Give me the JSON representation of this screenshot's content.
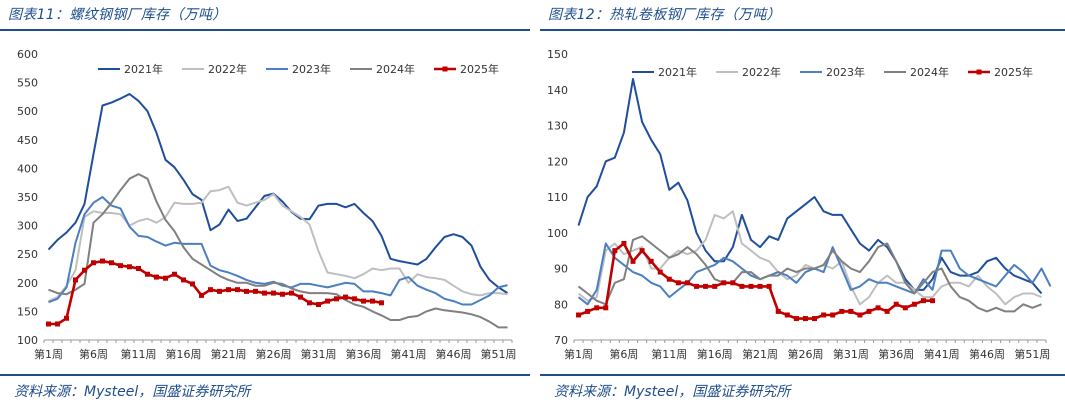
{
  "panels": [
    {
      "title": "图表11：螺纹钢钢厂库存（万吨）",
      "source": "资料来源：Mysteel，国盛证券研究所"
    },
    {
      "title": "图表12：热轧卷板钢厂库存（万吨）",
      "source": "资料来源：Mysteel，国盛证券研究所"
    }
  ],
  "chart_data": [
    {
      "type": "line",
      "title": "图表11：螺纹钢钢厂库存（万吨）",
      "xlabel": "",
      "ylabel": "",
      "ylim": [
        100,
        600
      ],
      "yticks": [
        100,
        150,
        200,
        250,
        300,
        350,
        400,
        450,
        500,
        550,
        600
      ],
      "x_tick_labels": [
        "第1周",
        "第6周",
        "第11周",
        "第16周",
        "第21周",
        "第26周",
        "第31周",
        "第36周",
        "第41周",
        "第46周",
        "第51周"
      ],
      "grid": false,
      "legend_position": "top",
      "series": [
        {
          "name": "2021年",
          "color": "#1f4e9c",
          "values": [
            258,
            275,
            288,
            305,
            338,
            425,
            510,
            515,
            522,
            530,
            518,
            500,
            462,
            415,
            402,
            380,
            355,
            345,
            292,
            302,
            328,
            308,
            312,
            332,
            352,
            356,
            342,
            324,
            312,
            311,
            335,
            338,
            338,
            332,
            338,
            322,
            308,
            282,
            242,
            238,
            235,
            232,
            242,
            262,
            280,
            285,
            280,
            265,
            228,
            205,
            192,
            182
          ]
        },
        {
          "name": "2022年",
          "color": "#bfbfbf",
          "values": [
            168,
            175,
            195,
            222,
            315,
            325,
            322,
            322,
            320,
            300,
            308,
            312,
            305,
            315,
            340,
            338,
            338,
            340,
            360,
            362,
            368,
            340,
            335,
            340,
            345,
            355,
            335,
            325,
            315,
            302,
            255,
            218,
            215,
            212,
            208,
            215,
            225,
            222,
            225,
            225,
            200,
            215,
            210,
            208,
            205,
            195,
            185,
            180,
            178,
            182,
            182,
            180
          ]
        },
        {
          "name": "2023年",
          "color": "#4a7fc1",
          "values": [
            166,
            172,
            192,
            270,
            320,
            340,
            350,
            335,
            330,
            298,
            282,
            280,
            272,
            265,
            270,
            268,
            268,
            268,
            230,
            222,
            218,
            212,
            205,
            200,
            198,
            202,
            195,
            192,
            198,
            198,
            195,
            192,
            196,
            200,
            198,
            185,
            185,
            182,
            178,
            205,
            210,
            195,
            188,
            182,
            172,
            168,
            162,
            162,
            170,
            178,
            192,
            196
          ]
        },
        {
          "name": "2024年",
          "color": "#808080",
          "values": [
            188,
            182,
            180,
            188,
            198,
            305,
            320,
            340,
            362,
            382,
            390,
            382,
            342,
            310,
            290,
            262,
            242,
            232,
            222,
            212,
            205,
            200,
            200,
            195,
            195,
            200,
            198,
            190,
            185,
            182,
            182,
            182,
            180,
            170,
            162,
            158,
            150,
            143,
            135,
            135,
            140,
            142,
            150,
            155,
            152,
            150,
            148,
            145,
            140,
            132,
            122,
            122
          ]
        },
        {
          "name": "2025年",
          "color": "#c00000",
          "values": [
            128,
            128,
            138,
            205,
            222,
            235,
            238,
            235,
            230,
            228,
            225,
            215,
            210,
            208,
            215,
            205,
            198,
            178,
            188,
            185,
            188,
            188,
            185,
            185,
            182,
            182,
            180,
            182,
            175,
            165,
            162,
            168,
            172,
            175,
            172,
            168,
            168,
            165
          ]
        }
      ]
    },
    {
      "type": "line",
      "title": "图表12：热轧卷板钢厂库存（万吨）",
      "xlabel": "",
      "ylabel": "",
      "ylim": [
        70,
        150
      ],
      "yticks": [
        70,
        80,
        90,
        100,
        110,
        120,
        130,
        140,
        150
      ],
      "x_tick_labels": [
        "第1周",
        "第6周",
        "第11周",
        "第16周",
        "第21周",
        "第26周",
        "第31周",
        "第36周",
        "第41周",
        "第46周",
        "第51周"
      ],
      "grid": false,
      "legend_position": "top",
      "series": [
        {
          "name": "2021年",
          "color": "#1f4e9c",
          "values": [
            102,
            110,
            113,
            120,
            121,
            128,
            143,
            131,
            126,
            122,
            112,
            114,
            109,
            100,
            95,
            92,
            92,
            96,
            105,
            98,
            96,
            99,
            98,
            104,
            106,
            108,
            110,
            106,
            105,
            105,
            101,
            97,
            95,
            98,
            96,
            92,
            87,
            84,
            84,
            87,
            93,
            89,
            88,
            88,
            89,
            92,
            93,
            90,
            88,
            87,
            86,
            83
          ]
        },
        {
          "name": "2022年",
          "color": "#bfbfbf",
          "values": [
            83,
            81,
            82,
            95,
            97,
            94,
            95,
            96,
            90,
            90,
            93,
            95,
            94,
            95,
            98,
            105,
            104,
            106,
            97,
            95,
            93,
            92,
            89,
            87,
            88,
            91,
            90,
            91,
            90,
            92,
            85,
            80,
            82,
            86,
            88,
            86,
            86,
            84,
            82,
            82,
            85,
            86,
            86,
            85,
            88,
            85,
            83,
            80,
            82,
            83,
            83,
            82
          ]
        },
        {
          "name": "2023年",
          "color": "#4a7fc1",
          "values": [
            82,
            80,
            84,
            97,
            93,
            91,
            89,
            88,
            86,
            85,
            82,
            84,
            86,
            89,
            90,
            91,
            93,
            92,
            90,
            88,
            87,
            88,
            89,
            88,
            86,
            89,
            90,
            89,
            96,
            90,
            84,
            85,
            87,
            86,
            86,
            85,
            84,
            83,
            87,
            84,
            95,
            95,
            90,
            88,
            87,
            86,
            85,
            88,
            91,
            89,
            86,
            90,
            85
          ]
        },
        {
          "name": "2024年",
          "color": "#808080",
          "values": [
            85,
            83,
            81,
            80,
            86,
            87,
            98,
            99,
            97,
            95,
            93,
            94,
            96,
            94,
            91,
            87,
            86,
            86,
            89,
            89,
            87,
            88,
            88,
            90,
            89,
            90,
            90,
            91,
            95,
            92,
            90,
            89,
            92,
            96,
            97,
            92,
            86,
            83,
            86,
            89,
            90,
            85,
            82,
            81,
            79,
            78,
            79,
            78,
            78,
            80,
            79,
            80
          ]
        },
        {
          "name": "2025年",
          "color": "#c00000",
          "values": [
            77,
            78,
            79,
            79,
            95,
            97,
            92,
            95,
            92,
            89,
            87,
            86,
            86,
            85,
            85,
            85,
            86,
            86,
            85,
            85,
            85,
            85,
            78,
            77,
            76,
            76,
            76,
            77,
            77,
            78,
            78,
            77,
            78,
            79,
            78,
            80,
            79,
            80,
            81,
            81
          ]
        }
      ]
    }
  ]
}
